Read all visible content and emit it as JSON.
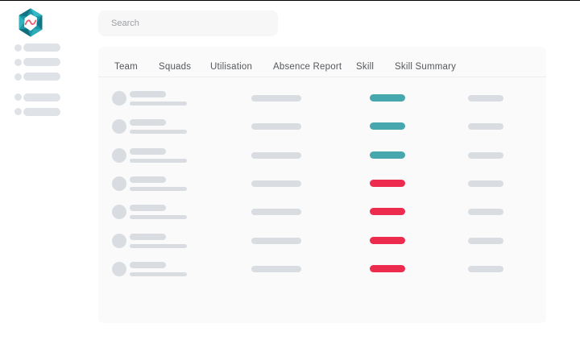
{
  "search": {
    "placeholder": "Search"
  },
  "logo": {
    "icon": "hexagon-wave-logo"
  },
  "sidebar": {
    "items": [
      {
        "type": "nav-placeholder"
      },
      {
        "type": "nav-placeholder"
      },
      {
        "type": "nav-placeholder"
      },
      {
        "type": "nav-placeholder"
      },
      {
        "type": "nav-placeholder"
      }
    ]
  },
  "table": {
    "headers": [
      "Team",
      "Squads",
      "Utilisation",
      "Absence Report",
      "Skill",
      "Skill Summary"
    ],
    "rows": [
      {
        "skill_status": "teal"
      },
      {
        "skill_status": "teal"
      },
      {
        "skill_status": "teal"
      },
      {
        "skill_status": "red"
      },
      {
        "skill_status": "red"
      },
      {
        "skill_status": "red"
      },
      {
        "skill_status": "red"
      }
    ]
  },
  "colors": {
    "teal": "#47A7AE",
    "red": "#ED2B4F",
    "placeholder_dark": "#D9DDE2",
    "placeholder_light": "#DFE2E6",
    "card_bg": "#FAFAFB",
    "logo_teal": "#1A96A5",
    "logo_red": "#EE5A6E"
  }
}
